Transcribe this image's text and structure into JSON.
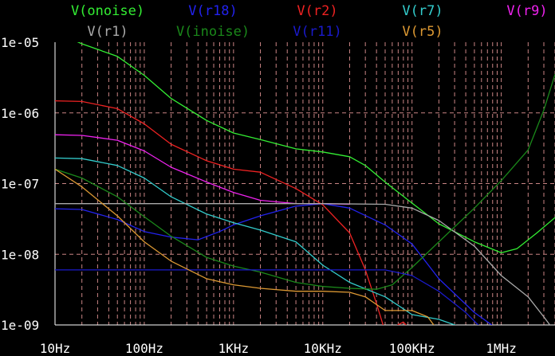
{
  "chart_data": {
    "type": "line",
    "x_scale": "log",
    "y_scale": "log",
    "xlim": [
      10,
      4000000
    ],
    "ylim": [
      1e-09,
      1e-05
    ],
    "grid": true,
    "legend_placement": "top",
    "x_ticks": [
      {
        "value": 10,
        "label": "10Hz"
      },
      {
        "value": 100,
        "label": "100Hz"
      },
      {
        "value": 1000,
        "label": "1KHz"
      },
      {
        "value": 10000,
        "label": "10KHz"
      },
      {
        "value": 100000,
        "label": "100KHz"
      },
      {
        "value": 1000000,
        "label": "1MHz"
      }
    ],
    "y_ticks": [
      {
        "value": 1e-05,
        "label": "1e-05"
      },
      {
        "value": 1e-06,
        "label": "1e-06"
      },
      {
        "value": 1e-07,
        "label": "1e-07"
      },
      {
        "value": 1e-08,
        "label": "1e-08"
      },
      {
        "value": 1e-09,
        "label": "1e-09"
      }
    ],
    "series": [
      {
        "name": "V(onoise)",
        "color": "#33ee33",
        "points": [
          [
            10,
            1.4e-05
          ],
          [
            20,
            9.5e-06
          ],
          [
            50,
            6.3e-06
          ],
          [
            100,
            3.4e-06
          ],
          [
            200,
            1.6e-06
          ],
          [
            500,
            7.8e-07
          ],
          [
            1000,
            5.2e-07
          ],
          [
            2000,
            4.2e-07
          ],
          [
            5000,
            3.1e-07
          ],
          [
            10000,
            2.8e-07
          ],
          [
            20000,
            2.4e-07
          ],
          [
            30000,
            1.8e-07
          ],
          [
            50000,
            1.05e-07
          ],
          [
            100000,
            5.3e-08
          ],
          [
            200000,
            2.7e-08
          ],
          [
            500000,
            1.5e-08
          ],
          [
            1000000,
            1.05e-08
          ],
          [
            1500000,
            1.2e-08
          ],
          [
            2500000,
            2e-08
          ],
          [
            4000000,
            3.3e-08
          ]
        ]
      },
      {
        "name": "V(r18)",
        "color": "#2222ee",
        "points": [
          [
            10,
            4.4e-08
          ],
          [
            20,
            4.3e-08
          ],
          [
            50,
            3.1e-08
          ],
          [
            100,
            2.1e-08
          ],
          [
            200,
            1.75e-08
          ],
          [
            400,
            1.6e-08
          ],
          [
            700,
            2.1e-08
          ],
          [
            1000,
            2.6e-08
          ],
          [
            2000,
            3.5e-08
          ],
          [
            5000,
            4.8e-08
          ],
          [
            10000,
            5.2e-08
          ],
          [
            20000,
            4.5e-08
          ],
          [
            50000,
            2.6e-08
          ],
          [
            100000,
            1.4e-08
          ],
          [
            200000,
            4.5e-09
          ],
          [
            500000,
            1.5e-09
          ],
          [
            1000000,
            8e-10
          ]
        ]
      },
      {
        "name": "V(r2)",
        "color": "#ee2222",
        "points": [
          [
            10,
            1.48e-06
          ],
          [
            20,
            1.45e-06
          ],
          [
            50,
            1.15e-06
          ],
          [
            100,
            7e-07
          ],
          [
            200,
            3.6e-07
          ],
          [
            500,
            2.1e-07
          ],
          [
            1000,
            1.6e-07
          ],
          [
            2000,
            1.45e-07
          ],
          [
            5000,
            8.5e-08
          ],
          [
            10000,
            5e-08
          ],
          [
            20000,
            2e-08
          ],
          [
            30000,
            6e-09
          ],
          [
            40000,
            2e-09
          ],
          [
            50000,
            8e-10
          ],
          [
            80000,
            1.1e-09
          ],
          [
            100000,
            8e-10
          ]
        ]
      },
      {
        "name": "V(r7)",
        "color": "#33cccc",
        "points": [
          [
            10,
            2.3e-07
          ],
          [
            20,
            2.25e-07
          ],
          [
            50,
            1.8e-07
          ],
          [
            100,
            1.2e-07
          ],
          [
            200,
            6.5e-08
          ],
          [
            500,
            3.7e-08
          ],
          [
            1000,
            2.8e-08
          ],
          [
            2000,
            2.2e-08
          ],
          [
            5000,
            1.5e-08
          ],
          [
            10000,
            7e-09
          ],
          [
            20000,
            4e-09
          ],
          [
            50000,
            2.5e-09
          ],
          [
            100000,
            1.4e-09
          ],
          [
            200000,
            1.2e-09
          ],
          [
            500000,
            8e-10
          ]
        ]
      },
      {
        "name": "V(r9)",
        "color": "#ee22ee",
        "points": [
          [
            10,
            4.9e-07
          ],
          [
            20,
            4.8e-07
          ],
          [
            50,
            4.1e-07
          ],
          [
            100,
            2.9e-07
          ],
          [
            200,
            1.7e-07
          ],
          [
            500,
            1.05e-07
          ],
          [
            1000,
            7.5e-08
          ],
          [
            2000,
            5.8e-08
          ],
          [
            5000,
            5.2e-08
          ],
          [
            10000,
            5.2e-08
          ],
          [
            20000,
            5.1e-08
          ]
        ]
      },
      {
        "name": "V(r1)",
        "color": "#aaaaaa",
        "points": [
          [
            10,
            5.2e-08
          ],
          [
            100,
            5.2e-08
          ],
          [
            1000,
            5.2e-08
          ],
          [
            10000,
            5.2e-08
          ],
          [
            50000,
            5.1e-08
          ],
          [
            100000,
            4.5e-08
          ],
          [
            200000,
            3e-08
          ],
          [
            500000,
            1.3e-08
          ],
          [
            1000000,
            5e-09
          ],
          [
            2000000,
            2.5e-09
          ],
          [
            3000000,
            1.3e-09
          ],
          [
            4000000,
            8e-10
          ]
        ]
      },
      {
        "name": "V(inoise)",
        "color": "#1a881a",
        "points": [
          [
            10,
            1.6e-07
          ],
          [
            20,
            1.2e-07
          ],
          [
            50,
            6.5e-08
          ],
          [
            100,
            3.4e-08
          ],
          [
            200,
            1.8e-08
          ],
          [
            500,
            9e-09
          ],
          [
            1000,
            6.8e-09
          ],
          [
            2000,
            5.6e-09
          ],
          [
            5000,
            4e-09
          ],
          [
            10000,
            3.5e-09
          ],
          [
            20000,
            3.3e-09
          ],
          [
            40000,
            3.2e-09
          ],
          [
            60000,
            3.7e-09
          ],
          [
            100000,
            6.5e-09
          ],
          [
            200000,
            1.5e-08
          ],
          [
            500000,
            4.5e-08
          ],
          [
            1000000,
            1.1e-07
          ],
          [
            2000000,
            3e-07
          ],
          [
            3000000,
            1.1e-06
          ],
          [
            4000000,
            3.5e-06
          ]
        ]
      },
      {
        "name": "V(r11)",
        "color": "#1a1acc",
        "points": [
          [
            10,
            6e-09
          ],
          [
            100,
            6e-09
          ],
          [
            1000,
            6e-09
          ],
          [
            10000,
            6e-09
          ],
          [
            30000,
            6e-09
          ],
          [
            50000,
            6e-09
          ],
          [
            100000,
            5e-09
          ],
          [
            200000,
            3e-09
          ],
          [
            400000,
            1.5e-09
          ],
          [
            600000,
            9e-10
          ]
        ]
      },
      {
        "name": "V(r5)",
        "color": "#dd9933",
        "points": [
          [
            10,
            1.6e-07
          ],
          [
            20,
            9e-08
          ],
          [
            50,
            3.5e-08
          ],
          [
            100,
            1.5e-08
          ],
          [
            200,
            8e-09
          ],
          [
            500,
            4.5e-09
          ],
          [
            1000,
            3.7e-09
          ],
          [
            2000,
            3.3e-09
          ],
          [
            5000,
            3e-09
          ],
          [
            10000,
            3e-09
          ],
          [
            20000,
            2.9e-09
          ],
          [
            30000,
            2.5e-09
          ],
          [
            50000,
            1.6e-09
          ],
          [
            100000,
            1.6e-09
          ],
          [
            150000,
            1.3e-09
          ],
          [
            200000,
            8e-10
          ]
        ]
      }
    ]
  }
}
